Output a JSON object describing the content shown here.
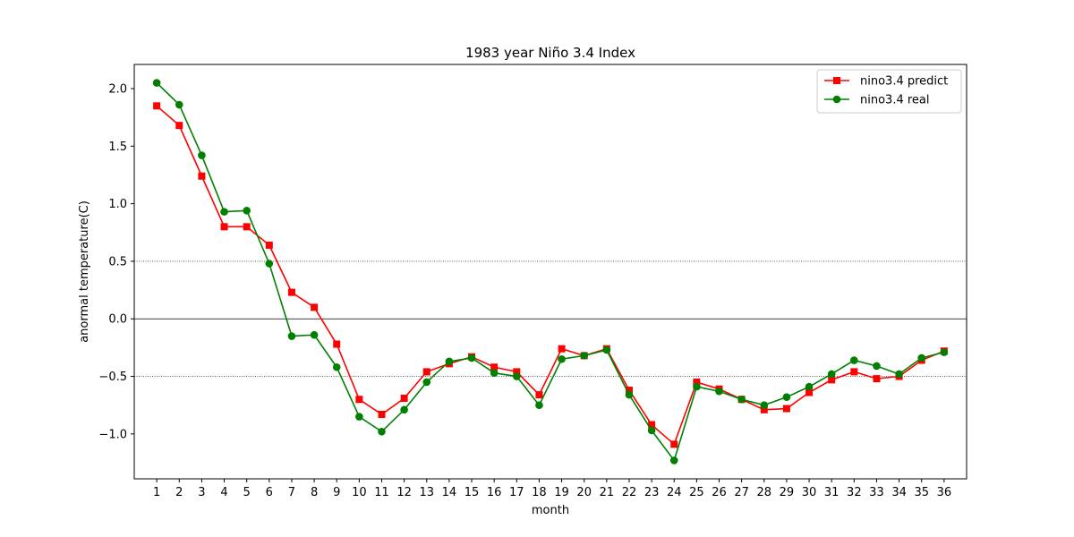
{
  "chart_data": {
    "type": "line",
    "title": "1983 year Niño 3.4 Index",
    "xlabel": "month",
    "ylabel": "anormal temperature(C)",
    "x": [
      1,
      2,
      3,
      4,
      5,
      6,
      7,
      8,
      9,
      10,
      11,
      12,
      13,
      14,
      15,
      16,
      17,
      18,
      19,
      20,
      21,
      22,
      23,
      24,
      25,
      26,
      27,
      28,
      29,
      30,
      31,
      32,
      33,
      34,
      35,
      36
    ],
    "xlim": [
      0,
      37
    ],
    "ylim": [
      -1.39,
      2.21
    ],
    "yticks": [
      -1.0,
      -0.5,
      0.0,
      0.5,
      1.0,
      1.5,
      2.0
    ],
    "ytick_labels": [
      "−1.0",
      "−0.5",
      "0.0",
      "0.5",
      "1.0",
      "1.5",
      "2.0"
    ],
    "reference_lines": [
      {
        "y": 0.0,
        "style": "solid"
      },
      {
        "y": 0.5,
        "style": "dotted"
      },
      {
        "y": -0.5,
        "style": "dotted"
      }
    ],
    "legend_position": "top-right",
    "series": [
      {
        "name": "nino3.4 predict",
        "color": "#ff0000",
        "marker": "square",
        "values": [
          1.85,
          1.68,
          1.24,
          0.8,
          0.8,
          0.64,
          0.23,
          0.1,
          -0.22,
          -0.7,
          -0.83,
          -0.69,
          -0.46,
          -0.39,
          -0.33,
          -0.42,
          -0.46,
          -0.66,
          -0.26,
          -0.32,
          -0.26,
          -0.62,
          -0.92,
          -1.09,
          -0.55,
          -0.61,
          -0.7,
          -0.79,
          -0.78,
          -0.64,
          -0.53,
          -0.46,
          -0.52,
          -0.5,
          -0.36,
          -0.28
        ]
      },
      {
        "name": "nino3.4 real",
        "color": "#008000",
        "marker": "circle",
        "values": [
          2.05,
          1.86,
          1.42,
          0.93,
          0.94,
          0.48,
          -0.15,
          -0.14,
          -0.42,
          -0.85,
          -0.98,
          -0.79,
          -0.55,
          -0.37,
          -0.34,
          -0.47,
          -0.5,
          -0.75,
          -0.35,
          -0.32,
          -0.27,
          -0.66,
          -0.97,
          -1.23,
          -0.59,
          -0.63,
          -0.7,
          -0.75,
          -0.68,
          -0.59,
          -0.48,
          -0.36,
          -0.41,
          -0.48,
          -0.34,
          -0.29
        ]
      }
    ]
  }
}
